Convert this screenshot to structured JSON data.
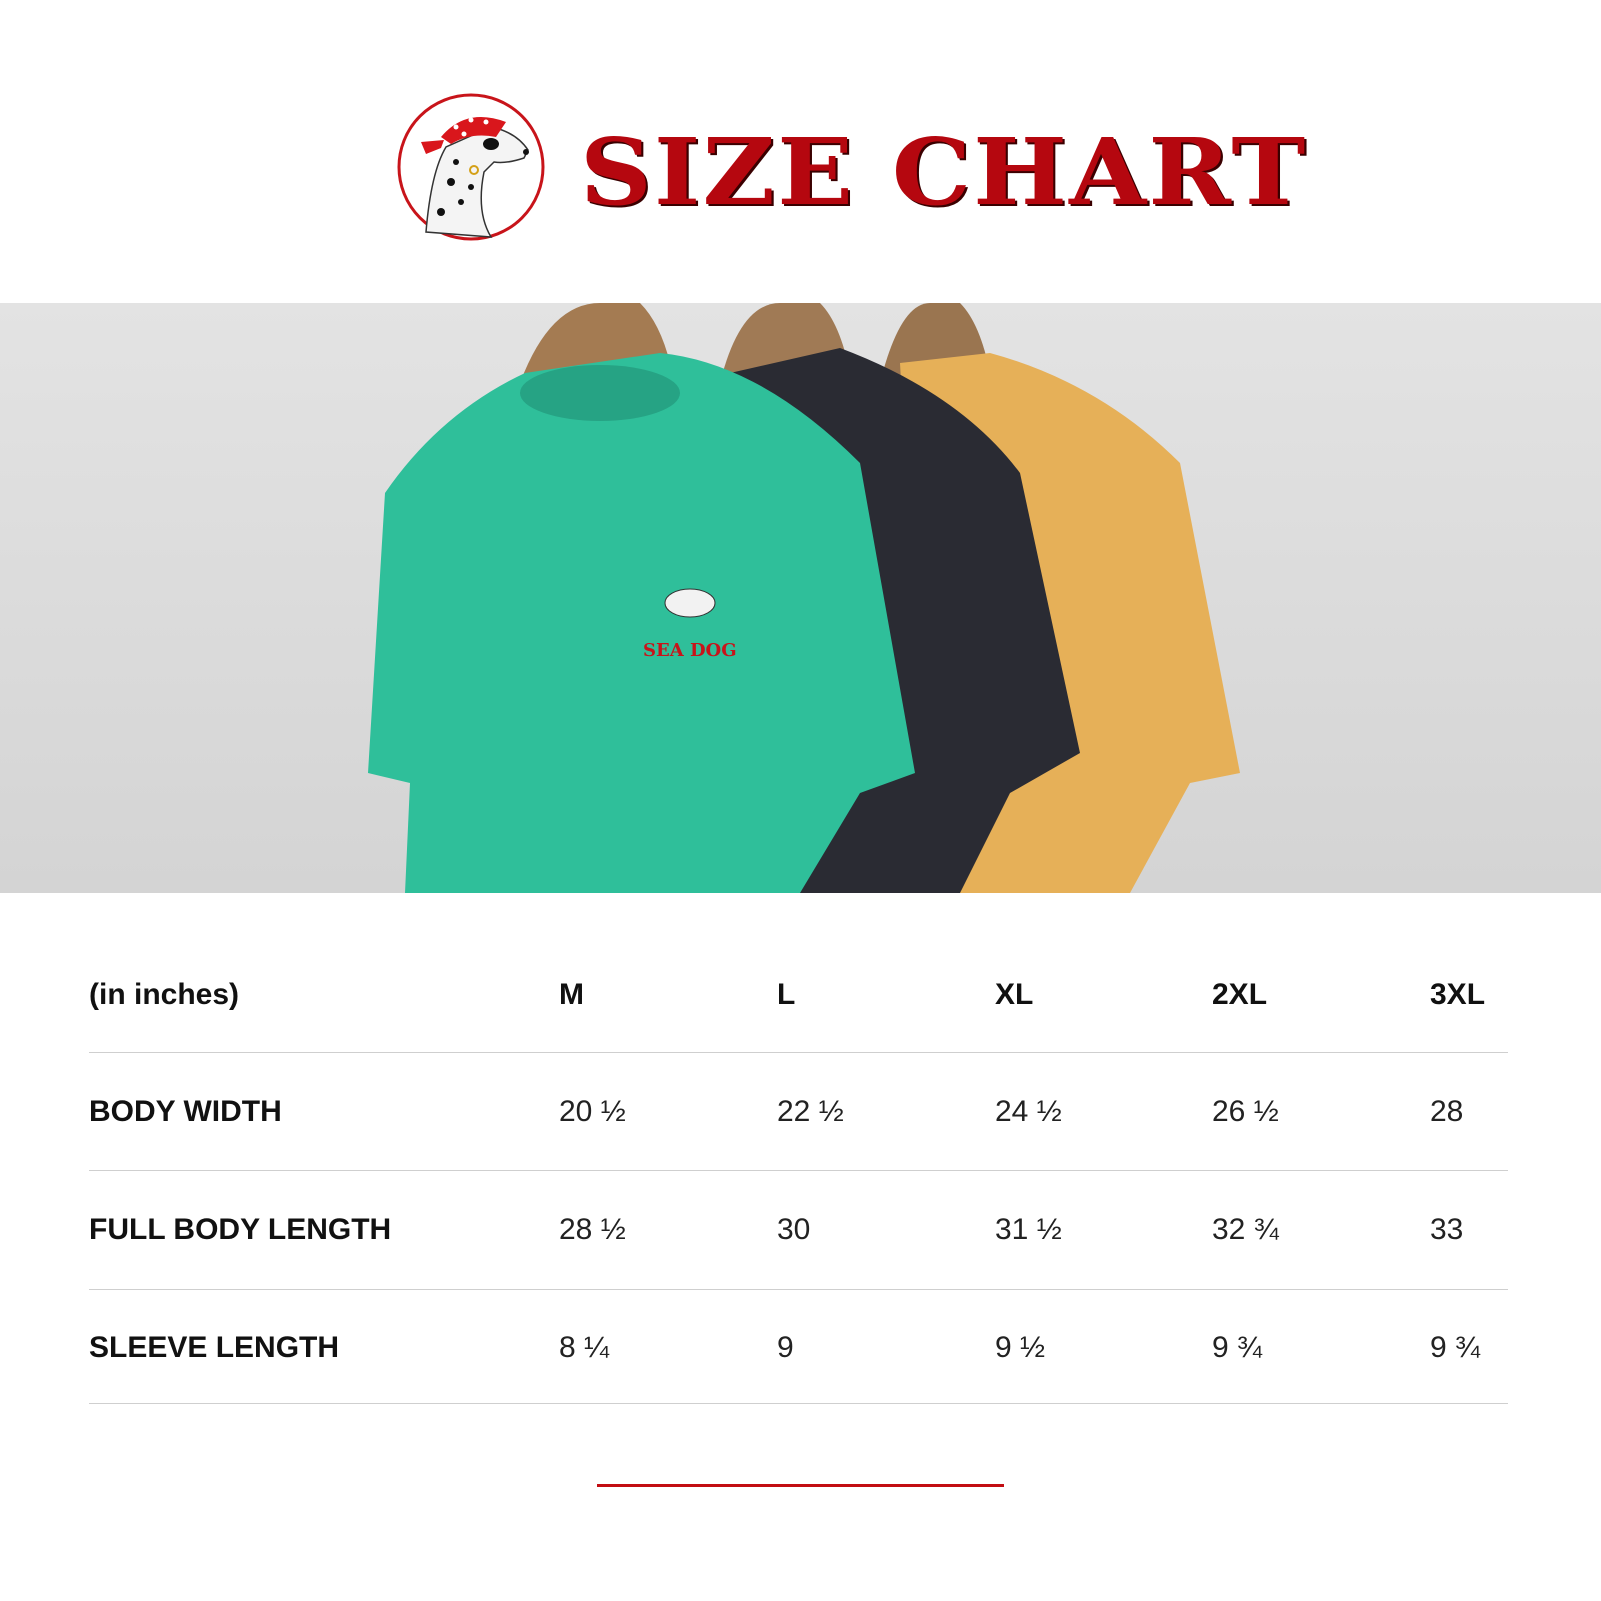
{
  "header": {
    "title": "SIZE CHART",
    "logo_icon": "dalmatian-pirate-logo",
    "title_color": "#b5070f"
  },
  "photo": {
    "shirt_colors": [
      "#2fbf9a",
      "#2a2b33",
      "#e6b058"
    ],
    "print_text": "SEA DOG"
  },
  "table": {
    "unit_label": "(in inches)",
    "sizes": [
      "M",
      "L",
      "XL",
      "2XL",
      "3XL"
    ],
    "rows": [
      {
        "label": "BODY WIDTH",
        "values": [
          "20 ½",
          "22 ½",
          "24 ½",
          "26 ½",
          "28"
        ]
      },
      {
        "label": "FULL BODY LENGTH",
        "values": [
          "28 ½",
          "30",
          "31 ½",
          "32 ¾",
          "33"
        ]
      },
      {
        "label": "SLEEVE LENGTH",
        "values": [
          "8 ¼",
          "9",
          "9 ½",
          "9 ¾",
          "9 ¾"
        ]
      }
    ]
  },
  "accent_color": "#c20d12"
}
